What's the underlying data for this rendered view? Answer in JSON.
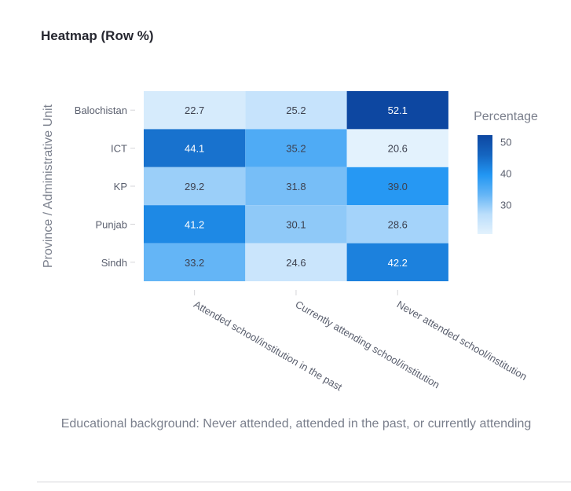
{
  "page": {
    "title": "Heatmap (Row %)"
  },
  "chart_data": {
    "type": "heatmap",
    "title": "Heatmap (Row %)",
    "xlabel": "Educational background: Never attended, attended in the past, or currently attending",
    "ylabel": "Province / Administrative Unit",
    "x_categories": [
      "Attended school/institution in the past",
      "Currently attending school/institution",
      "Never attended school/institution"
    ],
    "y_categories": [
      "Balochistan",
      "ICT",
      "KP",
      "Punjab",
      "Sindh"
    ],
    "values": [
      [
        22.7,
        25.2,
        52.1
      ],
      [
        44.1,
        35.2,
        20.6
      ],
      [
        29.2,
        31.8,
        39.0
      ],
      [
        41.2,
        30.1,
        28.6
      ],
      [
        33.2,
        24.6,
        42.2
      ]
    ],
    "colorbar": {
      "title": "Percentage",
      "ticks": [
        30,
        40,
        50
      ],
      "range": [
        20.6,
        52.1
      ],
      "colorscale": [
        "#e3f2fd",
        "#bbdefb",
        "#64b5f6",
        "#2196f3",
        "#1565c0",
        "#0d47a1"
      ]
    }
  }
}
